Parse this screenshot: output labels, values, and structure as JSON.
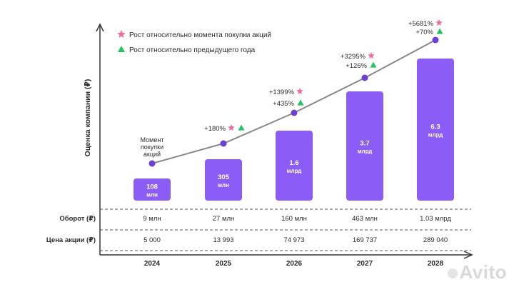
{
  "chart_data": {
    "type": "bar",
    "ylabel": "Оценка компании (₽)",
    "legend": [
      {
        "label": "Рост относительно момента покупки акций",
        "symbol": "star",
        "color": "#f06c9b"
      },
      {
        "label": "Рост относительно предыдущего года",
        "symbol": "triangle",
        "color": "#22c55e"
      }
    ],
    "categories": [
      "2024",
      "2025",
      "2026",
      "2027",
      "2028"
    ],
    "valuation_values": [
      0.108,
      0.305,
      1.6,
      3.7,
      6.3
    ],
    "valuation_line": [
      0.108,
      0.305,
      1.6,
      3.7,
      6.3
    ],
    "bar_labels": [
      [
        "108",
        "млн"
      ],
      [
        "305",
        "млн"
      ],
      [
        "1.6",
        "млрд"
      ],
      [
        "3.7",
        "млрд"
      ],
      [
        "6.3",
        "млрд"
      ]
    ],
    "start_annotation": [
      "Момент",
      "покупки",
      "акций"
    ],
    "growth_since_purchase": [
      "",
      "+180%",
      "+1399%",
      "+3295%",
      "+5681%"
    ],
    "growth_yoy": [
      "",
      "",
      "+435%",
      "+126%",
      "+70%"
    ],
    "table": {
      "rows": [
        {
          "label": "Оборот (₽)",
          "values": [
            "9 млн",
            "27 млн",
            "160 млн",
            "463 млн",
            "1.03 млрд"
          ]
        },
        {
          "label": "Цена акции (₽)",
          "values": [
            "5 000",
            "13 993",
            "74 973",
            "169 737",
            "289 040"
          ]
        }
      ]
    }
  },
  "colors": {
    "bar": "#8b5cf6",
    "line": "#888888",
    "point": "#6d3fd8",
    "star": "#f06c9b",
    "triangle": "#22c55e",
    "text": "#2b2b2b",
    "axis": "#333333"
  },
  "watermark": "Avito"
}
